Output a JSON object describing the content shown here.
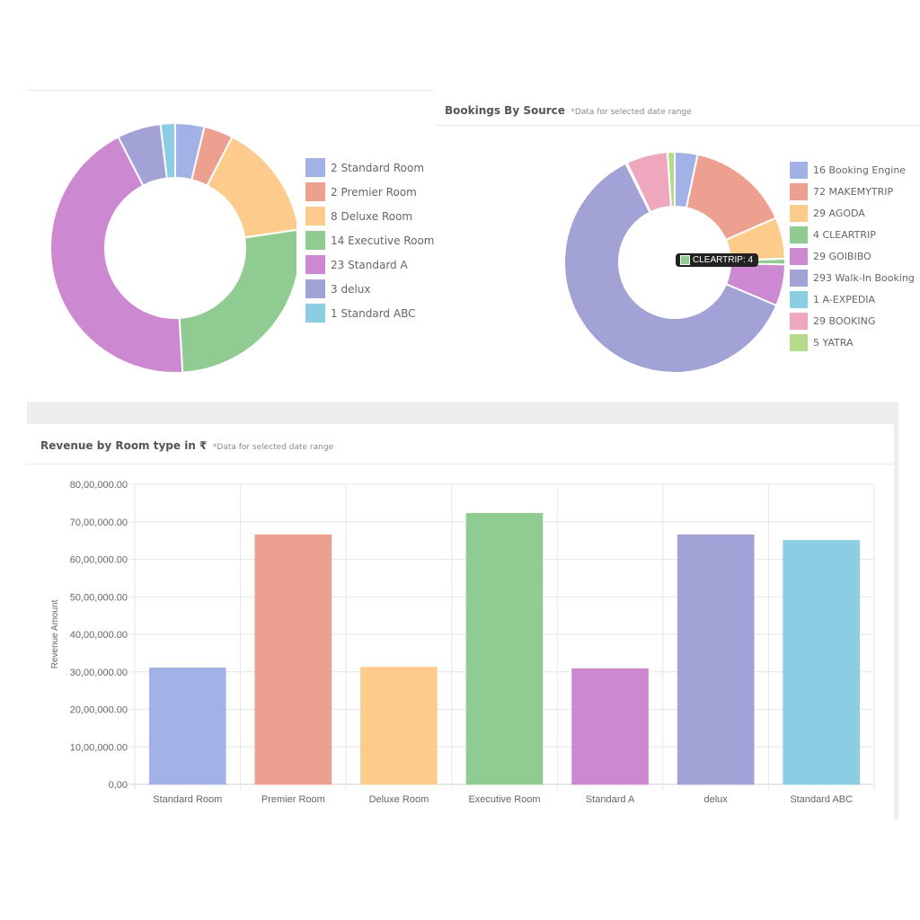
{
  "room_pie": {
    "legend": [
      "2 Standard Room",
      "2 Premier Room",
      "8 Deluxe Room",
      "14 Executive Room",
      "23 Standard A",
      "3 delux",
      "1 Standard ABC"
    ]
  },
  "source_pie": {
    "title": "Bookings By Source",
    "note": "*Data for selected date range",
    "legend": [
      "16 Booking Engine",
      "72 MAKEMYTRIP",
      "29 AGODA",
      "4 CLEARTRIP",
      "29 GOIBIBO",
      "293 Walk-In Booking",
      "1 A-EXPEDIA",
      "29 BOOKING",
      "5 YATRA"
    ],
    "tooltip": "CLEARTRIP: 4"
  },
  "revenue": {
    "title": "Revenue by Room type in ₹",
    "note": "*Data for selected date range"
  },
  "colors": [
    "#a2b2e6",
    "#eda08f",
    "#fdcb8c",
    "#90cb92",
    "#cc88d1",
    "#a3a2d6",
    "#8bcde2",
    "#eea7bd",
    "#b6d98c"
  ],
  "chart_data": [
    {
      "type": "pie",
      "donut": true,
      "categories": [
        "Standard Room",
        "Premier Room",
        "Deluxe Room",
        "Executive Room",
        "Standard A",
        "delux",
        "Standard ABC"
      ],
      "values": [
        2,
        2,
        8,
        14,
        23,
        3,
        1
      ],
      "legend_position": "right"
    },
    {
      "type": "pie",
      "donut": true,
      "title": "Bookings By Source",
      "categories": [
        "Booking Engine",
        "MAKEMYTRIP",
        "AGODA",
        "CLEARTRIP",
        "GOIBIBO",
        "Walk-In Booking",
        "A-EXPEDIA",
        "BOOKING",
        "YATRA"
      ],
      "values": [
        16,
        72,
        29,
        4,
        29,
        293,
        1,
        29,
        5
      ],
      "legend_position": "right"
    },
    {
      "type": "bar",
      "title": "Revenue by Room type in ₹",
      "categories": [
        "Standard Room",
        "Premier Room",
        "Deluxe Room",
        "Executive Room",
        "Standard A",
        "delux",
        "Standard ABC"
      ],
      "values": [
        3100000,
        6650000,
        3120000,
        7220000,
        3080000,
        6650000,
        6500000
      ],
      "ylabel": "Revenue Amount",
      "ylim": [
        0,
        8000000
      ],
      "yticks": [
        "0,00",
        "10,00,000.00",
        "20,00,000.00",
        "30,00,000.00",
        "40,00,000.00",
        "50,00,000.00",
        "60,00,000.00",
        "70,00,000.00",
        "80,00,000.00"
      ],
      "grid": true
    }
  ]
}
